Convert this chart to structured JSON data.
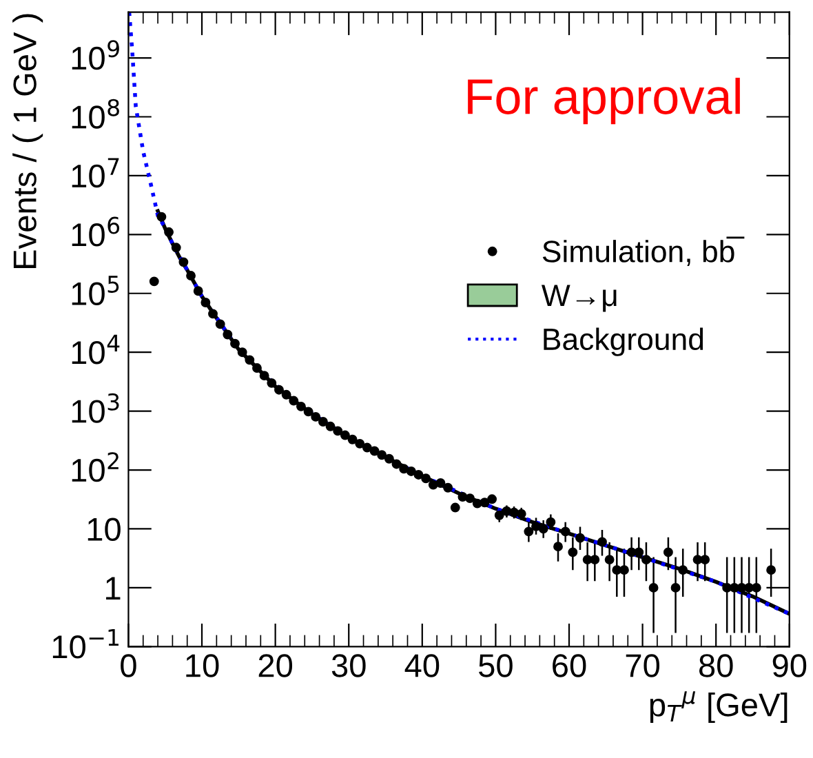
{
  "chart_data": {
    "type": "scatter",
    "ylabel": "Events / ( 1 GeV )",
    "xlabel": "p$_{T}$$^{μ}$ [GeV]",
    "annotations": [
      "For approval"
    ],
    "xlim": [
      0,
      90
    ],
    "ylim": [
      0.1,
      6000000000
    ],
    "xticks": [
      0,
      10,
      20,
      30,
      40,
      50,
      60,
      70,
      80,
      90
    ],
    "yticks": [
      {
        "value": 0.1,
        "label": "10$^{−1}$"
      },
      1,
      10,
      {
        "value": 100,
        "label": "10$^{2}$"
      },
      {
        "value": 1000,
        "label": "10$^{3}$"
      },
      {
        "value": 10000,
        "label": "10$^{4}$"
      },
      {
        "value": 100000,
        "label": "10$^{5}$"
      },
      {
        "value": 1000000,
        "label": "10$^{6}$"
      },
      {
        "value": 10000000,
        "label": "10$^{7}$"
      },
      {
        "value": 100000000,
        "label": "10$^{8}$"
      },
      {
        "value": 1000000000,
        "label": "10$^{9}$"
      }
    ],
    "log": "y",
    "grid": false,
    "legend": "right",
    "series": [
      {
        "name": "Simulation, bb̅",
        "color": "#000000",
        "marker": "circle",
        "x": [
          3.5,
          4.5,
          5.5,
          6.5,
          7.5,
          8.5,
          9.5,
          10.5,
          11.5,
          12.5,
          13.5,
          14.5,
          15.5,
          16.5,
          17.5,
          18.5,
          19.5,
          20.5,
          21.5,
          22.5,
          23.5,
          24.5,
          25.5,
          26.5,
          27.5,
          28.5,
          29.5,
          30.5,
          31.5,
          32.5,
          33.5,
          34.5,
          35.5,
          36.5,
          37.5,
          38.5,
          39.5,
          40.5,
          41.5,
          42.5,
          43.5,
          44.5,
          45.5,
          46.5,
          47.5,
          48.5,
          49.5,
          50.5,
          51.5,
          52.5,
          53.5,
          54.5,
          55.5,
          56.5,
          57.5,
          58.5,
          59.5,
          60.5,
          61.5,
          62.5,
          63.5,
          64.5,
          65.5,
          66.5,
          67.5,
          68.5,
          69.5,
          70.5,
          71.5,
          73.5,
          74.5,
          75.5,
          77.5,
          78.5,
          81.5,
          82.5,
          83.5,
          84.5,
          85.5,
          87.5
        ],
        "values": [
          160000,
          2000000,
          1100000,
          600000,
          340000,
          200000,
          110000,
          70000,
          45000,
          30000,
          20000,
          14000,
          10000,
          7400,
          5400,
          4000,
          3000,
          2300,
          1900,
          1500,
          1200,
          980,
          800,
          660,
          550,
          460,
          390,
          330,
          280,
          240,
          210,
          180,
          155,
          126,
          105,
          95,
          83,
          72,
          56,
          60,
          50,
          23,
          35,
          33,
          27,
          28,
          32,
          17,
          20,
          19,
          18,
          9,
          11,
          10,
          13,
          5,
          9,
          4,
          7,
          3,
          3,
          6,
          3,
          2,
          2,
          4,
          4,
          3,
          1,
          4,
          1,
          2,
          3,
          3,
          1,
          1,
          1,
          1,
          1,
          2
        ],
        "errors": [
          null,
          null,
          null,
          null,
          null,
          null,
          null,
          null,
          null,
          null,
          null,
          null,
          null,
          null,
          null,
          null,
          null,
          null,
          null,
          null,
          null,
          null,
          null,
          null,
          null,
          null,
          null,
          null,
          null,
          null,
          null,
          null,
          null,
          null,
          null,
          null,
          null,
          null,
          null,
          null,
          null,
          null,
          null,
          null,
          null,
          null,
          null,
          [
            13,
            21.6
          ],
          [
            15.6,
            25
          ],
          [
            15,
            24
          ],
          [
            14,
            22.8
          ],
          [
            6,
            13
          ],
          [
            8,
            15.4
          ],
          [
            7,
            14
          ],
          [
            9.6,
            17.6
          ],
          [
            2.8,
            8.4
          ],
          [
            6,
            13
          ],
          [
            2,
            7.2
          ],
          [
            4.4,
            10.8
          ],
          [
            1.3,
            5.9
          ],
          [
            1.3,
            5.9
          ],
          [
            3.5,
            9.6
          ],
          [
            1.3,
            5.9
          ],
          [
            0.7,
            4.6
          ],
          [
            0.7,
            4.6
          ],
          [
            2,
            7.2
          ],
          [
            2,
            7.2
          ],
          [
            1.3,
            5.9
          ],
          [
            0.17,
            3.3
          ],
          [
            2,
            7.2
          ],
          [
            0.17,
            3.3
          ],
          [
            0.7,
            4.6
          ],
          [
            1.3,
            5.9
          ],
          [
            1.3,
            5.9
          ],
          [
            0.17,
            3.3
          ],
          [
            0.17,
            3.3
          ],
          [
            0.17,
            3.3
          ],
          [
            0.17,
            3.3
          ],
          [
            0.17,
            3.3
          ],
          [
            0.7,
            4.6
          ]
        ]
      },
      {
        "type": "area",
        "name": "W→μ",
        "color": "#99cc99"
      },
      {
        "type": "line",
        "color": "#000000",
        "line_style": "solid",
        "x": [
          4,
          5,
          6,
          7,
          8,
          10,
          12,
          15,
          20,
          25,
          30,
          35,
          40,
          45,
          50,
          55,
          60,
          65,
          70,
          75,
          80,
          85,
          90
        ],
        "values": [
          2500000,
          1260000,
          700000,
          400000,
          250000,
          89000,
          38000,
          11200,
          2630,
          890,
          355,
          166,
          79,
          40,
          22,
          13,
          8.3,
          5.2,
          3.3,
          2.1,
          1.26,
          0.71,
          0.36
        ]
      },
      {
        "type": "line",
        "name": "Background",
        "color": "#0000ff",
        "line_style": "dotted",
        "x": [
          0.1,
          0.5,
          1,
          2,
          3,
          4,
          5,
          6,
          8,
          10,
          15,
          17.5,
          22.5,
          27.5,
          32.5,
          37.5,
          40,
          50,
          60,
          70,
          80,
          90
        ],
        "values": [
          6000000000,
          1400000000,
          150000000,
          26000000,
          7600000,
          2100000,
          1300000,
          700000,
          250000,
          89000,
          11200,
          5400,
          1500,
          560,
          240,
          115,
          79,
          22,
          8.3,
          3.3,
          1.26,
          0.36
        ]
      }
    ]
  }
}
